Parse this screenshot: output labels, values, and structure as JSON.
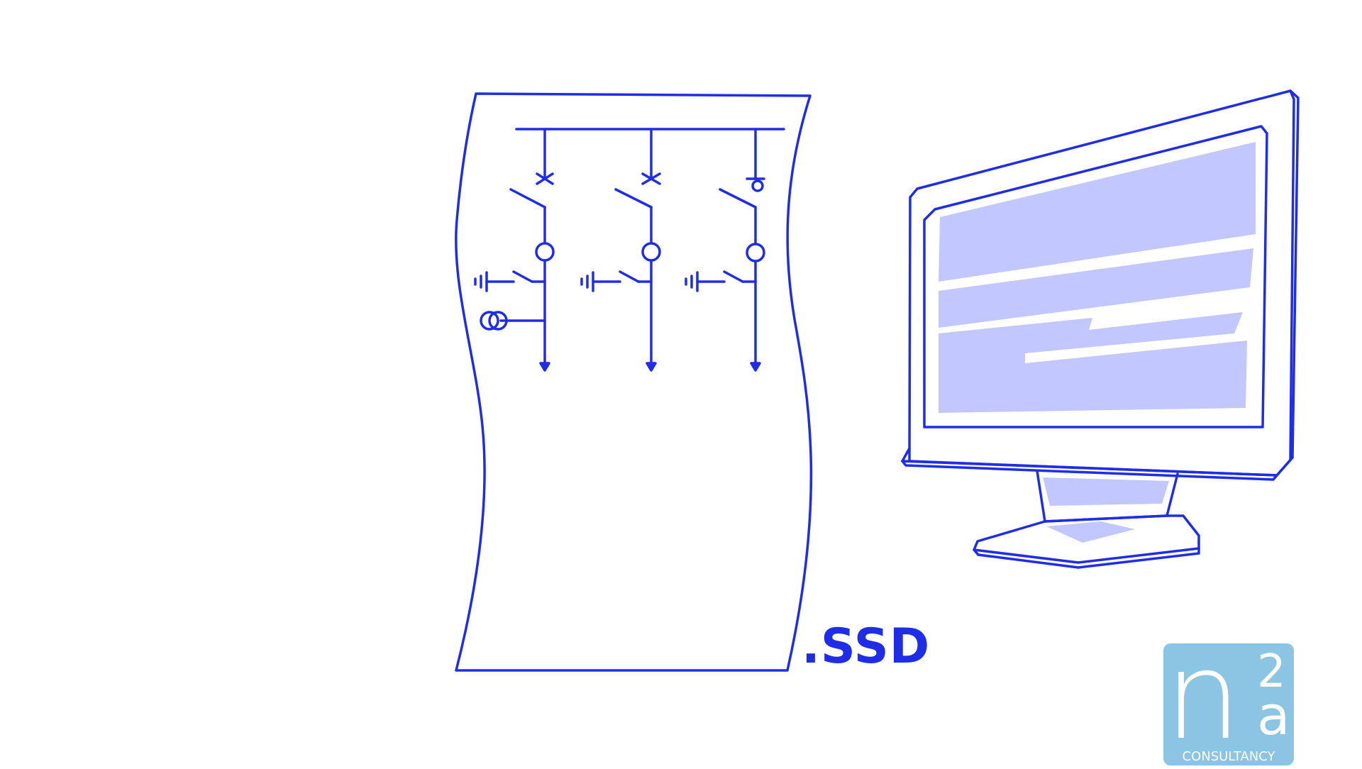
{
  "diagram": {
    "file_extension_label": ".SSD",
    "stroke_color": "#1f2ee6",
    "screen_fill_color": "#c3c7ff",
    "bays": [
      {
        "id": "bay-1",
        "disconnector": "cross",
        "has_current_transformer_tap": true
      },
      {
        "id": "bay-2",
        "disconnector": "cross",
        "has_current_transformer_tap": false
      },
      {
        "id": "bay-3",
        "disconnector": "circle",
        "has_current_transformer_tap": false
      }
    ]
  },
  "logo": {
    "letter_main": "n",
    "superscript": "2",
    "letter_sub": "a",
    "tagline": "CONSULTANCY",
    "color": "#8cc4e4"
  }
}
